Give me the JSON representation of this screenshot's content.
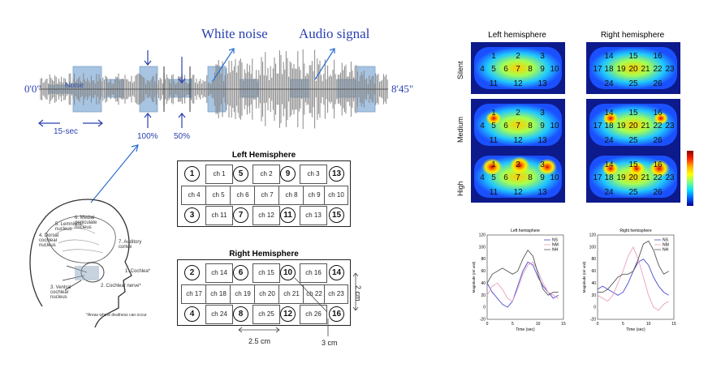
{
  "waveform": {
    "label_white_noise": "White noise",
    "label_audio_signal": "Audio signal",
    "label_noise": "Noise",
    "label_start": "0'0\"",
    "label_end": "8'45\"",
    "label_15sec": "15-sec",
    "label_100": "100%",
    "label_50": "50%"
  },
  "anatomy": {
    "labels": [
      "5. Lemniscal nucleus",
      "6. Medial geniculate nucleus",
      "4. Dorsal cochlear nucleus",
      "7. Auditory cortex",
      "1. Cochlea*",
      "3. Ventral cochlear nucleus",
      "2. Cochlear nerve*"
    ],
    "footnote": "*Areas where deafness can occur"
  },
  "left_hemisphere": {
    "title": "Left Hemisphere",
    "top_circles": [
      "1",
      "5",
      "9",
      "13"
    ],
    "top_channels": [
      "ch 1",
      "ch 2",
      "ch 3"
    ],
    "mid_channels": [
      "ch 4",
      "ch 5",
      "ch 6",
      "ch 7",
      "ch 8",
      "ch 9",
      "ch 10"
    ],
    "bottom_circles": [
      "3",
      "7",
      "11",
      "15"
    ],
    "bottom_channels": [
      "ch 11",
      "ch 12",
      "ch 13"
    ]
  },
  "right_hemisphere": {
    "title": "Right Hemisphere",
    "top_circles": [
      "2",
      "6",
      "10",
      "14"
    ],
    "top_channels": [
      "ch 14",
      "ch 15",
      "ch 16"
    ],
    "mid_channels": [
      "ch 17",
      "ch 18",
      "ch 19",
      "ch 20",
      "ch 21",
      "ch 22",
      "ch 23"
    ],
    "bottom_circles": [
      "4",
      "8",
      "12",
      "16"
    ],
    "bottom_channels": [
      "ch 24",
      "ch 25",
      "ch 26"
    ],
    "dim_width": "2.5 cm",
    "dim_height": "2 cm",
    "dim_diag": "3 cm"
  },
  "heatmaps": {
    "col_left": "Left hemisphere",
    "col_right": "Right hemisphere",
    "rows": [
      "Silent",
      "Medium",
      "High"
    ],
    "left_nums": [
      [
        "1",
        "2",
        "3",
        "4",
        "5",
        "6",
        "7",
        "8",
        "9",
        "10",
        "11",
        "12",
        "13"
      ],
      [
        "1",
        "2",
        "3",
        "4",
        "5",
        "6",
        "7",
        "8",
        "9",
        "10",
        "11",
        "12",
        "13"
      ],
      [
        "1",
        "2",
        "3",
        "4",
        "5",
        "6",
        "7",
        "8",
        "9",
        "10",
        "11",
        "12",
        "13"
      ]
    ],
    "right_nums": [
      [
        "14",
        "15",
        "16",
        "17",
        "18",
        "19",
        "20",
        "21",
        "22",
        "23",
        "24",
        "25",
        "26"
      ],
      [
        "14",
        "15",
        "16",
        "17",
        "18",
        "19",
        "20",
        "21",
        "22",
        "23",
        "24",
        "25",
        "26"
      ],
      [
        "14",
        "15",
        "16",
        "17",
        "18",
        "19",
        "20",
        "21",
        "22",
        "23",
        "24",
        "25",
        "26"
      ]
    ]
  },
  "chart_data": [
    {
      "type": "line",
      "title": "Left hemisphere",
      "xlabel": "Time (sec)",
      "ylabel": "Magnitude (rel unit)",
      "xlim": [
        0,
        15
      ],
      "ylim": [
        -20,
        120
      ],
      "xticks": [
        0,
        5,
        10,
        15
      ],
      "yticks": [
        -20,
        0,
        20,
        40,
        60,
        80,
        100,
        120
      ],
      "legend_position": "top-right",
      "x": [
        0,
        1,
        2,
        3,
        4,
        5,
        6,
        7,
        8,
        9,
        10,
        11,
        12,
        13,
        14
      ],
      "series": [
        {
          "name": "NS",
          "color": "#4a4ad0",
          "values": [
            40,
            25,
            15,
            5,
            0,
            10,
            35,
            60,
            75,
            70,
            50,
            35,
            25,
            15,
            20
          ]
        },
        {
          "name": "NM",
          "color": "#e8a0c0",
          "values": [
            20,
            35,
            40,
            30,
            15,
            10,
            30,
            55,
            70,
            75,
            60,
            40,
            25,
            20,
            15
          ]
        },
        {
          "name": "NH",
          "color": "#555555",
          "values": [
            40,
            55,
            60,
            65,
            60,
            55,
            60,
            80,
            95,
            85,
            55,
            30,
            20,
            25,
            25
          ]
        }
      ]
    },
    {
      "type": "line",
      "title": "Right hemisphere",
      "xlabel": "Time (sec)",
      "ylabel": "Magnitude (rel unit)",
      "xlim": [
        0,
        15
      ],
      "ylim": [
        -20,
        120
      ],
      "xticks": [
        0,
        5,
        10,
        15
      ],
      "yticks": [
        -20,
        0,
        20,
        40,
        60,
        80,
        100,
        120
      ],
      "legend_position": "top-right",
      "x": [
        0,
        1,
        2,
        3,
        4,
        5,
        6,
        7,
        8,
        9,
        10,
        11,
        12,
        13,
        14
      ],
      "series": [
        {
          "name": "NS",
          "color": "#4a4ad0",
          "values": [
            30,
            35,
            30,
            25,
            20,
            25,
            40,
            60,
            75,
            80,
            70,
            50,
            35,
            25,
            20
          ]
        },
        {
          "name": "NM",
          "color": "#e8a0c0",
          "values": [
            20,
            15,
            10,
            20,
            40,
            60,
            85,
            100,
            80,
            50,
            20,
            0,
            -5,
            5,
            10
          ]
        },
        {
          "name": "NH",
          "color": "#555555",
          "values": [
            25,
            25,
            30,
            40,
            50,
            55,
            55,
            60,
            80,
            105,
            110,
            95,
            70,
            55,
            60
          ]
        }
      ]
    }
  ]
}
